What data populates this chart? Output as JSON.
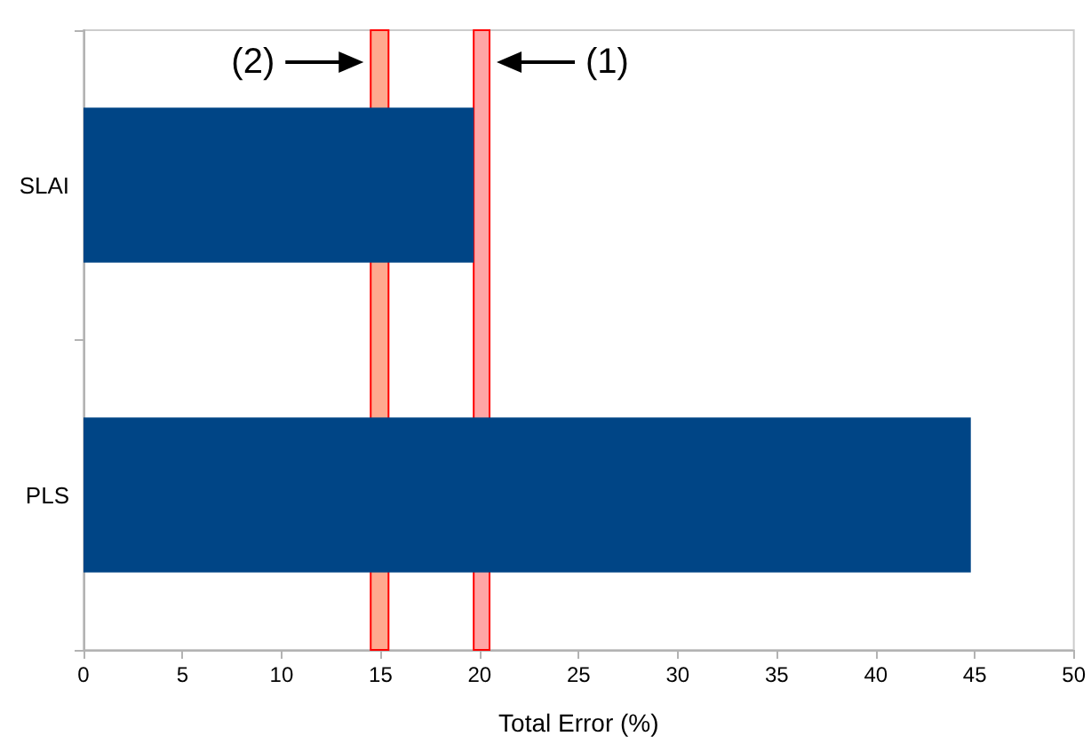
{
  "chart_data": {
    "type": "bar",
    "orientation": "horizontal",
    "xlabel": "Total Error (%)",
    "categories": [
      "SLAI",
      "PLS"
    ],
    "values": [
      19.7,
      44.8
    ],
    "color": "#004586",
    "xlim": [
      0,
      50
    ],
    "xticks": [
      0,
      5,
      10,
      15,
      20,
      25,
      30,
      35,
      40,
      45,
      50
    ],
    "grid": false,
    "bands": [
      {
        "axis": "x",
        "from": 14.5,
        "to": 15.4,
        "label": "(2)",
        "color": "#ffa98f"
      },
      {
        "axis": "x",
        "from": 19.7,
        "to": 20.5,
        "label": "(1)",
        "color": "#ffa6a6"
      }
    ]
  }
}
